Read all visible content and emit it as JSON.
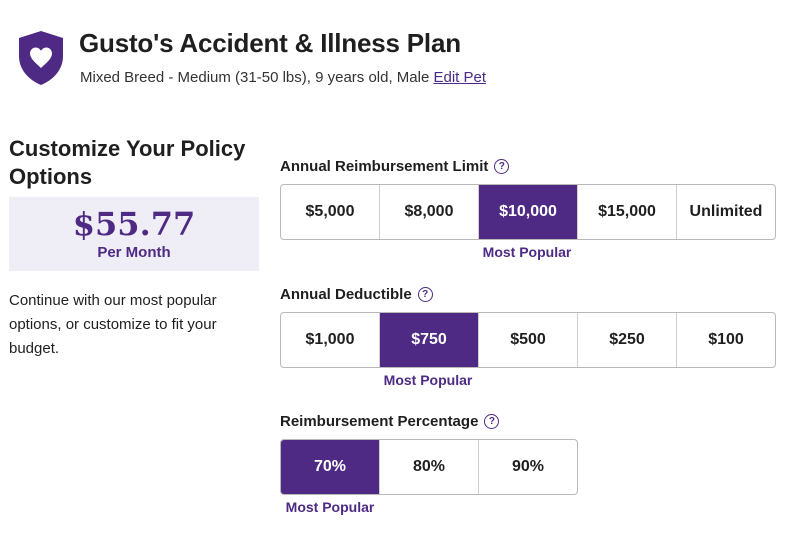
{
  "header": {
    "title": "Gusto's Accident & Illness Plan",
    "pet_info": "Mixed Breed - Medium (31-50 lbs), 9 years old, Male",
    "edit_label": "Edit Pet",
    "shield_icon": "heart-shield-icon"
  },
  "summary": {
    "heading": "Customize Your Policy Options",
    "price": "$55.77",
    "period": "Per Month",
    "description": "Continue with our most popular options, or customize to fit your budget."
  },
  "reimbursement_limit": {
    "label": "Annual Reimbursement Limit",
    "options": [
      "$5,000",
      "$8,000",
      "$10,000",
      "$15,000",
      "Unlimited"
    ],
    "selected": "$10,000",
    "popular_label": "Most Popular"
  },
  "deductible": {
    "label": "Annual Deductible",
    "options": [
      "$1,000",
      "$750",
      "$500",
      "$250",
      "$100"
    ],
    "selected": "$750",
    "popular_label": "Most Popular"
  },
  "reimbursement_percentage": {
    "label": "Reimbursement Percentage",
    "options": [
      "70%",
      "80%",
      "90%"
    ],
    "selected": "70%",
    "popular_label": "Most Popular"
  },
  "help_glyph": "?",
  "colors": {
    "brand": "#4e2a84",
    "price_box_bg": "#efedf5"
  }
}
